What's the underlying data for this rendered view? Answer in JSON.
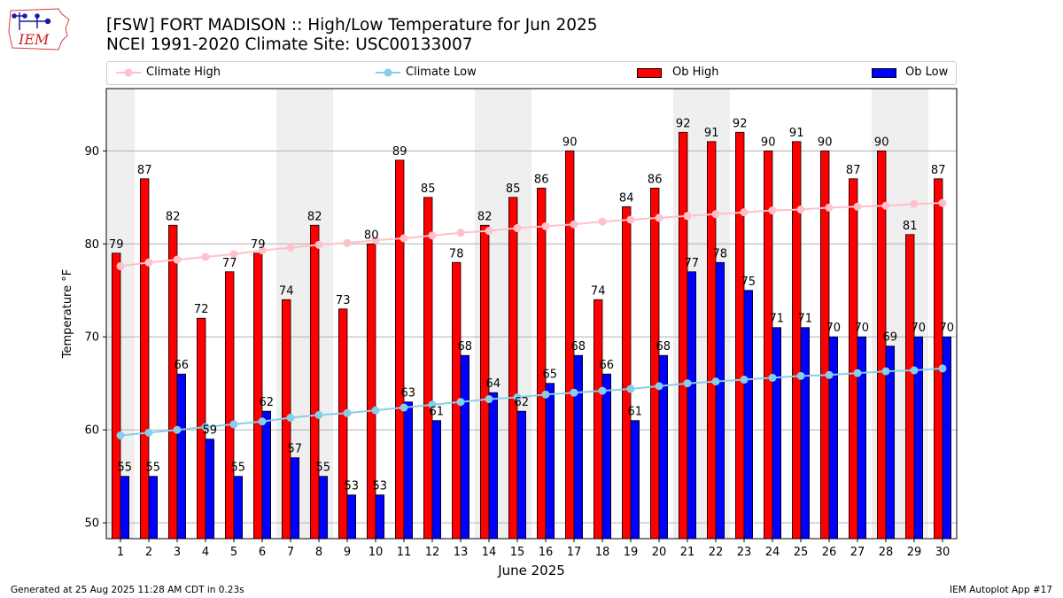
{
  "header": {
    "title_line1": "[FSW] FORT MADISON :: High/Low Temperature for Jun 2025",
    "title_line2": "NCEI 1991-2020 Climate Site: USC00133007"
  },
  "logo": {
    "text": "IEM",
    "icon": "iem-iowa-logo"
  },
  "legend": [
    {
      "label": "Climate High",
      "kind": "line",
      "color": "#ffc0cb"
    },
    {
      "label": "Climate Low",
      "kind": "line",
      "color": "#87ceeb"
    },
    {
      "label": "Ob High",
      "kind": "bar",
      "color": "#ff0000"
    },
    {
      "label": "Ob Low",
      "kind": "bar",
      "color": "#0000ff"
    }
  ],
  "footer": {
    "left": "Generated at 25 Aug 2025 11:28 AM CDT in 0.23s",
    "right": "IEM Autoplot App #17"
  },
  "chart_data": {
    "type": "bar",
    "xlabel": "June 2025",
    "ylabel": "Temperature °F",
    "ylim": [
      48.3,
      96.7
    ],
    "yticks": [
      50,
      60,
      70,
      80,
      90
    ],
    "grid": "horizontal",
    "weekend_shading_days": [
      1,
      7,
      8,
      14,
      15,
      21,
      22,
      28,
      29
    ],
    "categories": [
      "1",
      "2",
      "3",
      "4",
      "5",
      "6",
      "7",
      "8",
      "9",
      "10",
      "11",
      "12",
      "13",
      "14",
      "15",
      "16",
      "17",
      "18",
      "19",
      "20",
      "21",
      "22",
      "23",
      "24",
      "25",
      "26",
      "27",
      "28",
      "29",
      "30"
    ],
    "series": [
      {
        "name": "Ob High",
        "kind": "bar",
        "color": "#ff0000",
        "values": [
          79,
          87,
          82,
          72,
          77,
          79,
          74,
          82,
          73,
          80,
          89,
          85,
          78,
          82,
          85,
          86,
          90,
          74,
          84,
          86,
          92,
          91,
          92,
          90,
          91,
          90,
          87,
          90,
          81,
          87
        ]
      },
      {
        "name": "Ob Low",
        "kind": "bar",
        "color": "#0000ff",
        "values": [
          55,
          55,
          66,
          59,
          55,
          62,
          57,
          55,
          53,
          53,
          63,
          61,
          68,
          64,
          62,
          65,
          68,
          66,
          61,
          68,
          77,
          78,
          75,
          71,
          71,
          70,
          70,
          69,
          70,
          70
        ]
      },
      {
        "name": "Climate High",
        "kind": "line",
        "color": "#ffc0cb",
        "values": [
          77.6,
          78.0,
          78.3,
          78.6,
          78.9,
          79.3,
          79.6,
          79.9,
          80.1,
          80.4,
          80.6,
          80.9,
          81.2,
          81.4,
          81.7,
          81.9,
          82.1,
          82.4,
          82.6,
          82.8,
          83.0,
          83.2,
          83.4,
          83.6,
          83.7,
          83.9,
          84.0,
          84.1,
          84.3,
          84.4
        ]
      },
      {
        "name": "Climate Low",
        "kind": "line",
        "color": "#87ceeb",
        "values": [
          59.4,
          59.7,
          60.0,
          60.3,
          60.6,
          60.9,
          61.3,
          61.6,
          61.8,
          62.1,
          62.4,
          62.7,
          63.0,
          63.3,
          63.5,
          63.8,
          64.0,
          64.2,
          64.4,
          64.7,
          65.0,
          65.2,
          65.4,
          65.6,
          65.8,
          65.9,
          66.1,
          66.3,
          66.4,
          66.6
        ]
      }
    ]
  }
}
